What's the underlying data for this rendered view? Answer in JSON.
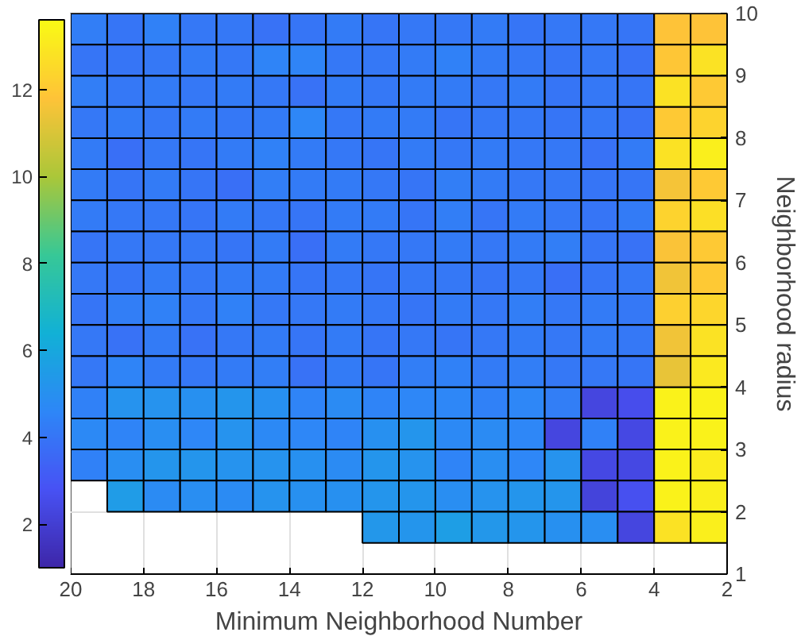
{
  "chart_data": {
    "type": "heatmap",
    "xlabel": "Minimum Neighborhood Number",
    "ylabel": "Neighborhood radius",
    "x": [
      19.5,
      18.5,
      17.5,
      16.5,
      15.5,
      14.5,
      13.5,
      12.5,
      11.5,
      10.5,
      9.5,
      8.5,
      7.5,
      6.5,
      5.5,
      4.5,
      3.5,
      2.5
    ],
    "y": [
      9.75,
      9.25,
      8.75,
      8.25,
      7.75,
      7.25,
      6.75,
      6.25,
      5.75,
      5.25,
      4.75,
      4.25,
      3.75,
      3.25,
      2.75,
      2.25,
      1.75
    ],
    "xlim": [
      20,
      2
    ],
    "ylim": [
      1,
      10
    ],
    "xticks": [
      20,
      18,
      16,
      14,
      12,
      10,
      8,
      6,
      4,
      2
    ],
    "yticks": [
      1,
      2,
      3,
      4,
      5,
      6,
      7,
      8,
      9,
      10
    ],
    "clim": [
      1,
      13.6
    ],
    "cticks": [
      2,
      4,
      6,
      8,
      10,
      12
    ],
    "grid": true,
    "cells": [
      [
        4.3,
        4.0,
        4.4,
        4.1,
        4.1,
        3.9,
        4.0,
        4.2,
        4.0,
        4.1,
        4.1,
        4.2,
        4.0,
        4.1,
        4.1,
        4.0,
        11.8,
        11.8
      ],
      [
        4.0,
        4.0,
        4.1,
        4.2,
        4.1,
        4.5,
        4.5,
        4.1,
        4.1,
        4.2,
        4.4,
        4.2,
        4.1,
        4.0,
        4.1,
        3.9,
        11.9,
        12.8
      ],
      [
        4.3,
        4.1,
        4.2,
        4.1,
        4.2,
        4.1,
        3.9,
        4.2,
        4.1,
        4.2,
        4.2,
        4.1,
        4.2,
        4.0,
        4.1,
        4.0,
        12.8,
        12.0
      ],
      [
        4.1,
        4.2,
        4.1,
        4.2,
        4.1,
        4.2,
        4.6,
        4.1,
        4.2,
        4.2,
        4.0,
        4.1,
        4.1,
        4.0,
        4.1,
        3.9,
        12.0,
        12.3
      ],
      [
        4.2,
        3.8,
        4.1,
        4.0,
        4.2,
        4.4,
        4.2,
        4.1,
        4.0,
        4.2,
        4.1,
        4.2,
        4.1,
        4.1,
        3.9,
        4.2,
        12.8,
        13.2
      ],
      [
        4.2,
        4.0,
        4.2,
        4.0,
        3.8,
        4.3,
        4.2,
        4.2,
        4.1,
        4.0,
        4.3,
        4.2,
        4.1,
        4.1,
        4.0,
        4.0,
        11.6,
        12.0
      ],
      [
        4.2,
        4.1,
        4.1,
        4.0,
        4.2,
        4.1,
        4.0,
        4.2,
        4.2,
        4.0,
        4.3,
        4.0,
        4.2,
        4.1,
        4.0,
        4.2,
        12.3,
        12.7
      ],
      [
        4.0,
        4.1,
        4.1,
        4.1,
        4.0,
        4.2,
        3.8,
        4.2,
        4.1,
        4.1,
        4.2,
        4.1,
        4.2,
        4.3,
        4.0,
        3.9,
        11.7,
        12.0
      ],
      [
        4.1,
        4.0,
        4.2,
        4.1,
        4.2,
        4.2,
        4.0,
        4.1,
        4.0,
        4.1,
        4.1,
        4.0,
        4.1,
        3.8,
        4.0,
        4.1,
        11.5,
        12.0
      ],
      [
        4.0,
        4.3,
        4.4,
        4.1,
        4.4,
        4.1,
        4.1,
        4.2,
        4.1,
        4.0,
        4.2,
        4.1,
        4.3,
        4.1,
        4.2,
        4.1,
        12.2,
        12.4
      ],
      [
        4.1,
        3.9,
        4.2,
        3.9,
        4.1,
        4.2,
        4.0,
        4.2,
        4.0,
        4.1,
        4.0,
        4.1,
        4.2,
        4.1,
        4.2,
        4.1,
        11.5,
        12.8
      ],
      [
        4.1,
        4.5,
        4.2,
        4.1,
        4.2,
        4.3,
        3.9,
        4.2,
        4.0,
        4.3,
        4.4,
        4.2,
        4.3,
        4.1,
        4.1,
        4.0,
        11.3,
        13.0
      ],
      [
        4.4,
        5.1,
        5.1,
        5.0,
        5.2,
        5.0,
        4.5,
        4.8,
        4.5,
        4.6,
        4.6,
        4.4,
        4.6,
        4.3,
        2.3,
        2.6,
        13.3,
        13.3
      ],
      [
        4.7,
        4.5,
        4.9,
        4.6,
        5.1,
        4.7,
        4.6,
        4.5,
        5.0,
        5.2,
        4.7,
        4.8,
        4.6,
        2.3,
        4.4,
        2.4,
        13.3,
        13.3
      ],
      [
        4.4,
        4.9,
        5.2,
        5.2,
        5.1,
        5.1,
        5.0,
        4.8,
        5.2,
        5.1,
        4.5,
        4.9,
        4.6,
        5.1,
        2.4,
        2.4,
        13.3,
        13.1
      ],
      [
        null,
        5.5,
        4.8,
        4.9,
        4.8,
        5.1,
        5.0,
        5.0,
        5.2,
        5.2,
        4.9,
        5.1,
        5.2,
        5.2,
        2.2,
        2.7,
        13.3,
        13.2
      ],
      [
        null,
        null,
        null,
        null,
        null,
        null,
        null,
        null,
        5.3,
        5.2,
        5.6,
        5.3,
        5.2,
        5.0,
        4.9,
        2.3,
        12.8,
        13.2
      ]
    ]
  }
}
